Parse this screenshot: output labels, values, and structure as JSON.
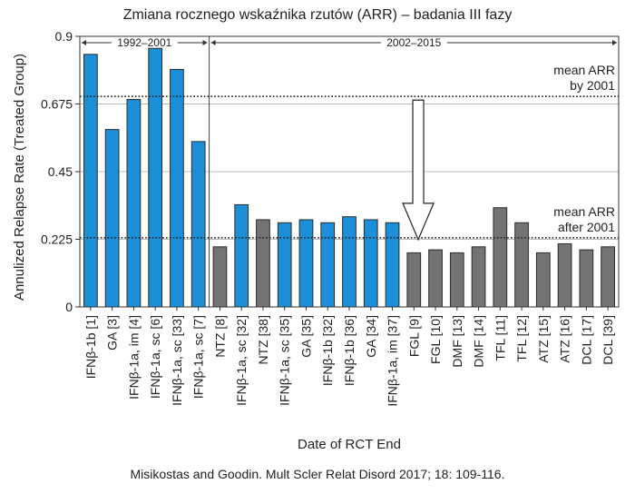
{
  "chart_data": {
    "type": "bar",
    "title": "Zmiana rocznego wskaźnika rzutów (ARR) – badania III fazy",
    "xlabel": "Date of RCT End",
    "ylabel": "Annulized Relapse Rate (Treated Group)",
    "ylim": [
      0,
      0.9
    ],
    "yticks": [
      "0",
      "0.225",
      "0.45",
      "0.675",
      "0.9"
    ],
    "grid": true,
    "source": "Misikostas and Goodin. Mult Scler Relat Disord 2017; 18: 109-116.",
    "colors": {
      "blue": "#1b8fd8",
      "gray": "#737373"
    },
    "categories": [
      "IFNβ-1b [1]",
      "GA [3]",
      "IFNβ-1a, im [4]",
      "IFNβ-1a, sc [6]",
      "IFNβ-1a, sc [33]",
      "IFNβ-1a, sc [7]",
      "NTZ [8]",
      "IFNβ-1a, sc [32]",
      "NTZ [38]",
      "IFNβ-1a, sc [35]",
      "GA [35]",
      "IFNβ-1b [32]",
      "IFNβ-1b [36]",
      "GA [34]",
      "IFNβ-1a, im [37]",
      "FGL [9]",
      "FGL [10]",
      "DMF [13]",
      "DMF [14]",
      "TFL [11]",
      "TFL [12]",
      "ATZ [15]",
      "ATZ [16]",
      "DCL [17]",
      "DCL [39]"
    ],
    "values": [
      0.84,
      0.59,
      0.69,
      0.86,
      0.79,
      0.55,
      0.2,
      0.34,
      0.29,
      0.28,
      0.29,
      0.28,
      0.3,
      0.29,
      0.28,
      0.18,
      0.19,
      0.18,
      0.2,
      0.33,
      0.28,
      0.18,
      0.21,
      0.19,
      0.2
    ],
    "bar_colors": [
      "blue",
      "blue",
      "blue",
      "blue",
      "blue",
      "blue",
      "gray",
      "blue",
      "gray",
      "blue",
      "blue",
      "blue",
      "blue",
      "blue",
      "blue",
      "gray",
      "gray",
      "gray",
      "gray",
      "gray",
      "gray",
      "gray",
      "gray",
      "gray",
      "gray"
    ],
    "periods": [
      {
        "label": "1992–2001",
        "start_index": 0,
        "end_index": 5
      },
      {
        "label": "2002–2015",
        "start_index": 6,
        "end_index": 24
      }
    ],
    "reference_lines": [
      {
        "label_line1": "mean ARR",
        "label_line2": "by 2001",
        "value": 0.7
      },
      {
        "label_line1": "mean ARR",
        "label_line2": "after 2001",
        "value": 0.23
      }
    ]
  }
}
